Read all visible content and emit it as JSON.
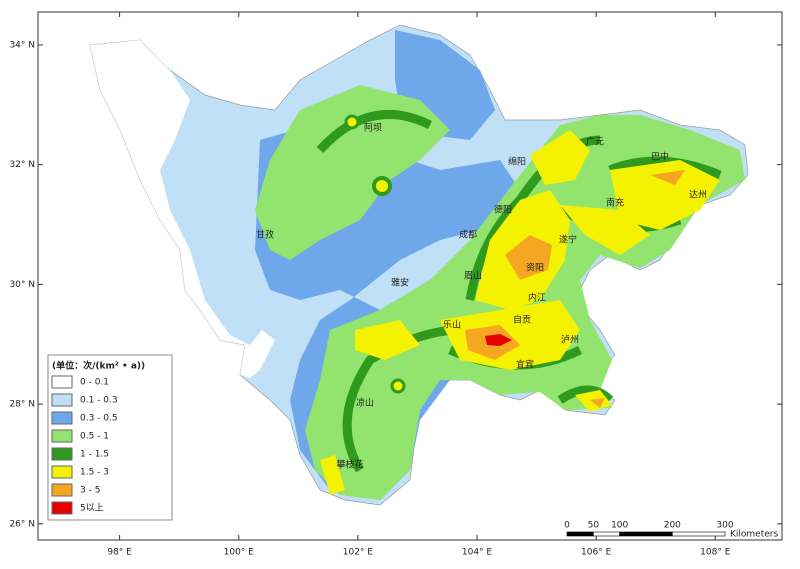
{
  "map": {
    "xlim": [
      96.63,
      109.12
    ],
    "ylim": [
      25.73,
      34.55
    ],
    "xticks": [
      {
        "value": 98,
        "label": "98° E"
      },
      {
        "value": 100,
        "label": "100° E"
      },
      {
        "value": 102,
        "label": "102° E"
      },
      {
        "value": 104,
        "label": "104° E"
      },
      {
        "value": 106,
        "label": "106° E"
      },
      {
        "value": 108,
        "label": "108° E"
      }
    ],
    "yticks": [
      {
        "value": 26,
        "label": "26° N"
      },
      {
        "value": 28,
        "label": "28° N"
      },
      {
        "value": 30,
        "label": "30° N"
      },
      {
        "value": 32,
        "label": "32° N"
      },
      {
        "value": 34,
        "label": "34° N"
      }
    ],
    "cities": [
      "阿坝",
      "绵阳",
      "广元",
      "巴中",
      "达州",
      "南充",
      "德阳",
      "成都",
      "遂宁",
      "甘孜",
      "资阳",
      "眉山",
      "雅安",
      "内江",
      "乐山",
      "自贡",
      "泸州",
      "宜宾",
      "凉山",
      "攀枝花"
    ],
    "legend": {
      "title": "(单位：次/(km² • a))",
      "items": [
        {
          "label": "0 - 0.1",
          "color": "#ffffff"
        },
        {
          "label": "0.1 - 0.3",
          "color": "#bfe0f7"
        },
        {
          "label": "0.3 - 0.5",
          "color": "#6fa8ea"
        },
        {
          "label": "0.5 - 1",
          "color": "#93e36f"
        },
        {
          "label": "1 - 1.5",
          "color": "#2f9a1e"
        },
        {
          "label": "1.5 - 3",
          "color": "#f4f200"
        },
        {
          "label": "3 - 5",
          "color": "#f5a623"
        },
        {
          "label": "5以上",
          "color": "#e60000"
        }
      ]
    },
    "scale": {
      "ticks": [
        0,
        50,
        100,
        200,
        300
      ],
      "unit": "Kilometers"
    }
  }
}
